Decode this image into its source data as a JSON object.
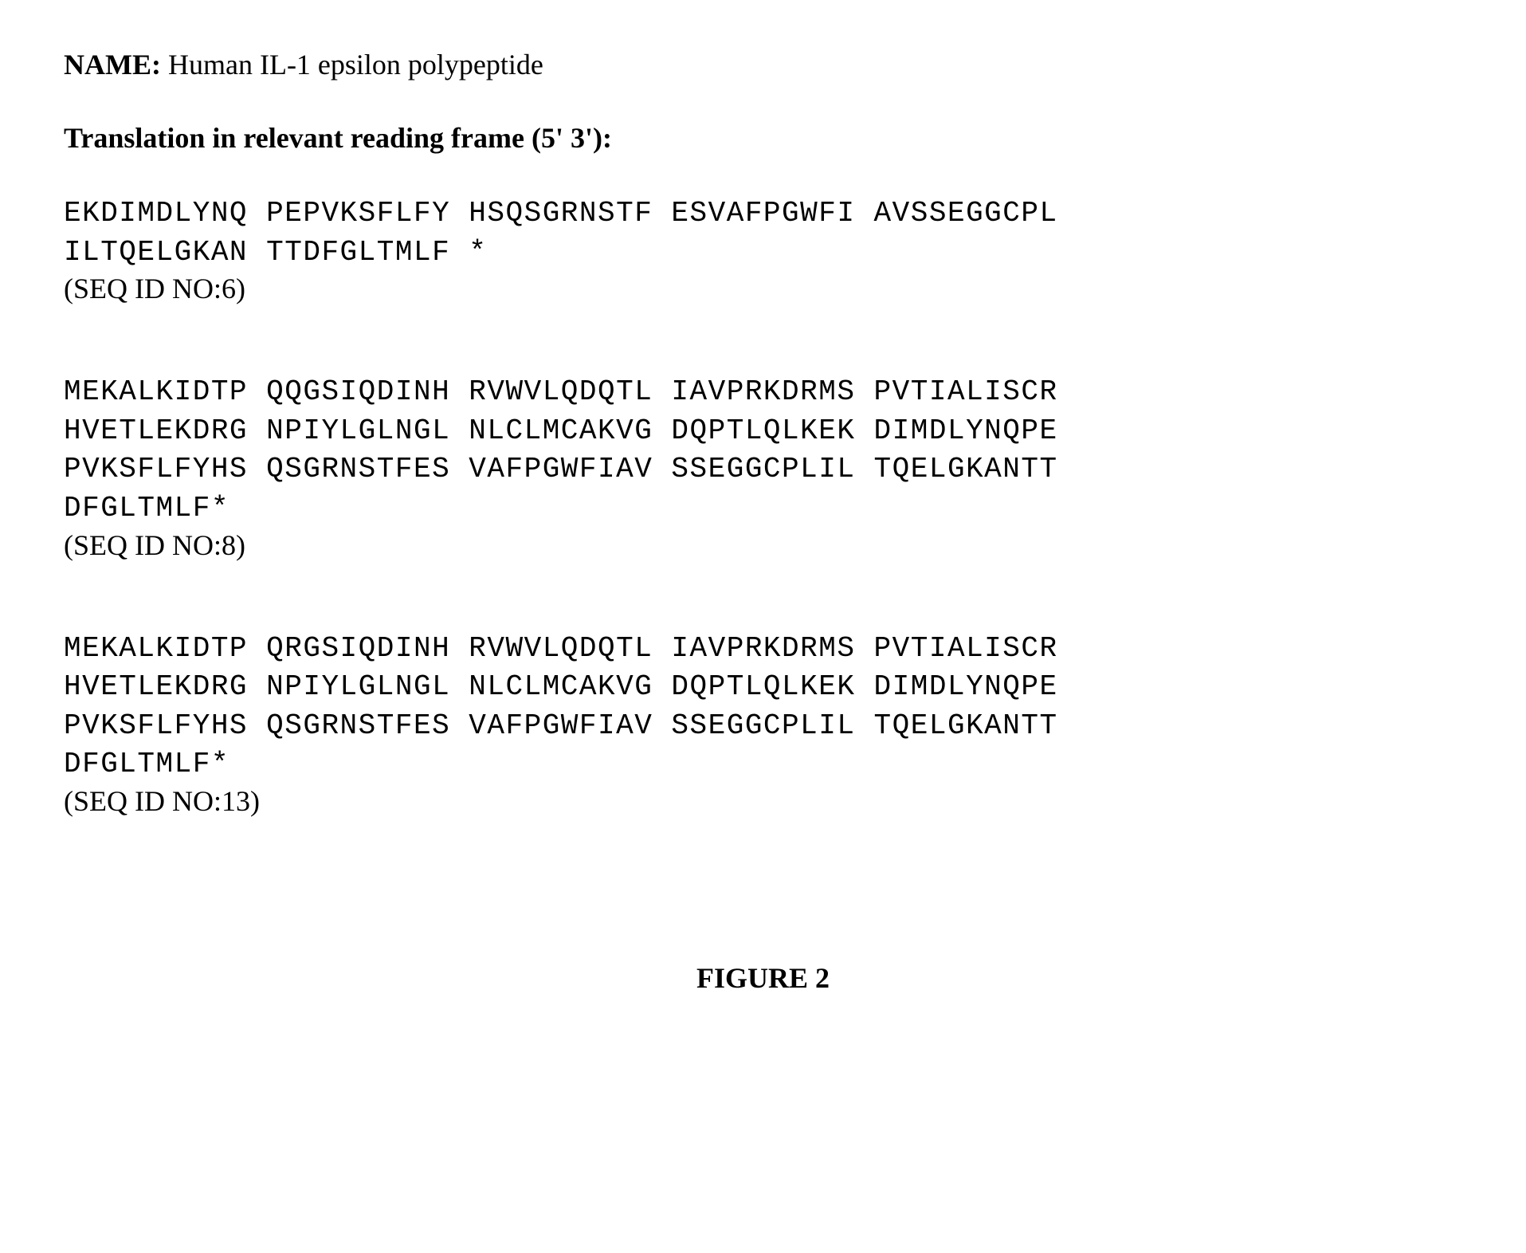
{
  "document": {
    "name_label": "NAME:",
    "name_value": " Human IL-1 epsilon polypeptide",
    "translation_header": "Translation in relevant reading frame (5' 3'):",
    "figure_label": "FIGURE 2",
    "sequences": [
      {
        "lines": [
          "EKDIMDLYNQ PEPVKSFLFY HSQSGRNSTF ESVAFPGWFI AVSSEGGCPL",
          "ILTQELGKAN TTDFGLTMLF *"
        ],
        "seq_id": "(SEQ ID NO:6)"
      },
      {
        "lines": [
          "MEKALKIDTP QQGSIQDINH RVWVLQDQTL IAVPRKDRMS PVTIALISCR",
          "HVETLEKDRG NPIYLGLNGL NLCLMCAKVG DQPTLQLKEK DIMDLYNQPE",
          "PVKSFLFYHS QSGRNSTFES VAFPGWFIAV SSEGGCPLIL TQELGKANTT",
          "DFGLTMLF*"
        ],
        "seq_id": "(SEQ ID NO:8)"
      },
      {
        "lines": [
          "MEKALKIDTP QRGSIQDINH RVWVLQDQTL IAVPRKDRMS PVTIALISCR",
          "HVETLEKDRG NPIYLGLNGL NLCLMCAKVG DQPTLQLKEK DIMDLYNQPE",
          "PVKSFLFYHS QSGRNSTFES VAFPGWFIAV SSEGGCPLIL TQELGKANTT",
          "DFGLTMLF*"
        ],
        "seq_id": "(SEQ ID NO:13)"
      }
    ]
  },
  "styling": {
    "background_color": "#ffffff",
    "text_color": "#000000",
    "serif_font": "Times New Roman",
    "mono_font": "Courier New",
    "base_fontsize": 36,
    "sequence_letterspacing": 1.5,
    "sequence_lineheight": 1.35
  }
}
